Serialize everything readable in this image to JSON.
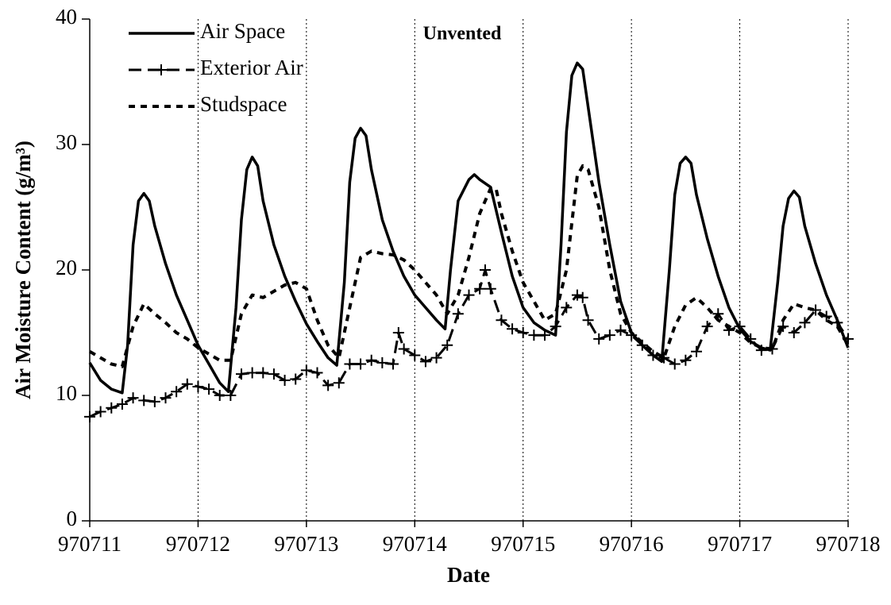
{
  "chart_data": {
    "type": "line",
    "title": "Unvented",
    "x_label": "Date",
    "y_label": "Air Moisture Content (g/m³)",
    "xlim": [
      970711,
      970718
    ],
    "xticks": [
      970711,
      970712,
      970713,
      970714,
      970715,
      970716,
      970717,
      970718
    ],
    "ylim": [
      0,
      40
    ],
    "yticks": [
      0,
      10,
      20,
      30,
      40
    ],
    "grid": "x",
    "legend": "upper left",
    "series": [
      {
        "name": "Air Space",
        "color": "#000000",
        "line_style": "solid",
        "x": [
          970711.0,
          970711.1,
          970711.2,
          970711.3,
          970711.35,
          970711.4,
          970711.45,
          970711.5,
          970711.55,
          970711.6,
          970711.7,
          970711.8,
          970711.9,
          970712.0,
          970712.1,
          970712.2,
          970712.28,
          970712.35,
          970712.4,
          970712.45,
          970712.5,
          970712.55,
          970712.6,
          970712.7,
          970712.8,
          970712.9,
          970713.0,
          970713.1,
          970713.2,
          970713.28,
          970713.35,
          970713.4,
          970713.45,
          970713.5,
          970713.55,
          970713.6,
          970713.7,
          970713.8,
          970713.9,
          970714.0,
          970714.1,
          970714.2,
          970714.28,
          970714.33,
          970714.4,
          970714.5,
          970714.55,
          970714.6,
          970714.7,
          970714.8,
          970714.9,
          970715.0,
          970715.1,
          970715.2,
          970715.3,
          970715.35,
          970715.4,
          970715.45,
          970715.5,
          970715.55,
          970715.6,
          970715.7,
          970715.8,
          970715.9,
          970716.0,
          970716.1,
          970716.2,
          970716.28,
          970716.35,
          970716.4,
          970716.45,
          970716.5,
          970716.55,
          970716.6,
          970716.7,
          970716.8,
          970716.9,
          970717.0,
          970717.1,
          970717.2,
          970717.28,
          970717.35,
          970717.4,
          970717.45,
          970717.5,
          970717.55,
          970717.6,
          970717.7,
          970717.8,
          970717.9,
          970718.0
        ],
        "values": [
          12.6,
          11.2,
          10.5,
          10.2,
          14,
          22,
          25.5,
          26.1,
          25.5,
          23.5,
          20.5,
          18,
          16,
          14,
          12.5,
          11,
          10.3,
          17,
          24,
          28,
          29,
          28.3,
          25.5,
          22,
          19.5,
          17.5,
          15.7,
          14.3,
          13,
          12.4,
          19,
          27,
          30.5,
          31.3,
          30.7,
          28,
          24,
          21.5,
          19.5,
          18,
          17,
          16,
          15.3,
          20,
          25.5,
          27.2,
          27.6,
          27.2,
          26.6,
          23,
          19.5,
          17,
          15.8,
          15.2,
          14.8,
          22,
          31,
          35.5,
          36.5,
          36,
          33,
          27,
          22,
          17.5,
          15,
          14,
          13.2,
          12.7,
          20,
          26,
          28.5,
          29,
          28.5,
          26,
          22.5,
          19.5,
          17,
          15.3,
          14.3,
          13.8,
          13.6,
          19,
          23.5,
          25.7,
          26.3,
          25.8,
          23.5,
          20.5,
          18,
          16,
          13.8
        ]
      },
      {
        "name": "Exterior Air",
        "color": "#000000",
        "line_style": "dashed",
        "marker": "+",
        "x": [
          970711.0,
          970711.1,
          970711.2,
          970711.3,
          970711.4,
          970711.5,
          970711.6,
          970711.7,
          970711.8,
          970711.9,
          970712.0,
          970712.1,
          970712.2,
          970712.3,
          970712.4,
          970712.5,
          970712.6,
          970712.7,
          970712.8,
          970712.9,
          970713.0,
          970713.1,
          970713.2,
          970713.3,
          970713.4,
          970713.5,
          970713.6,
          970713.7,
          970713.8,
          970713.85,
          970713.9,
          970714.0,
          970714.1,
          970714.2,
          970714.3,
          970714.4,
          970714.5,
          970714.6,
          970714.65,
          970714.7,
          970714.8,
          970714.9,
          970715.0,
          970715.1,
          970715.2,
          970715.3,
          970715.4,
          970715.5,
          970715.55,
          970715.6,
          970715.7,
          970715.8,
          970715.9,
          970716.0,
          970716.1,
          970716.2,
          970716.3,
          970716.4,
          970716.5,
          970716.6,
          970716.7,
          970716.8,
          970716.9,
          970717.0,
          970717.1,
          970717.2,
          970717.3,
          970717.4,
          970717.5,
          970717.6,
          970717.7,
          970717.8,
          970717.9,
          970718.0
        ],
        "values": [
          8.3,
          8.7,
          9,
          9.3,
          9.8,
          9.6,
          9.5,
          9.8,
          10.3,
          10.9,
          10.7,
          10.5,
          10,
          10,
          11.7,
          11.8,
          11.8,
          11.7,
          11.2,
          11.3,
          12,
          11.8,
          10.8,
          11,
          12.5,
          12.5,
          12.8,
          12.6,
          12.5,
          15,
          13.7,
          13.2,
          12.7,
          13,
          14,
          16.5,
          18,
          18.5,
          20,
          18.5,
          16,
          15.3,
          15,
          14.8,
          14.8,
          15.5,
          17,
          18,
          17.8,
          16,
          14.5,
          14.8,
          15.2,
          14.8,
          14,
          13.2,
          13,
          12.5,
          12.8,
          13.5,
          15.5,
          16.5,
          15.2,
          15.5,
          14.5,
          13.6,
          13.7,
          15.5,
          15,
          15.8,
          16.8,
          16.3,
          15.8,
          14.5
        ]
      },
      {
        "name": "Studspace",
        "color": "#000000",
        "line_style": "dotted",
        "x": [
          970711.0,
          970711.1,
          970711.2,
          970711.3,
          970711.4,
          970711.5,
          970711.6,
          970711.7,
          970711.8,
          970711.9,
          970712.0,
          970712.1,
          970712.2,
          970712.3,
          970712.4,
          970712.5,
          970712.6,
          970712.7,
          970712.8,
          970712.9,
          970713.0,
          970713.1,
          970713.2,
          970713.3,
          970713.4,
          970713.5,
          970713.6,
          970713.7,
          970713.8,
          970713.9,
          970714.0,
          970714.1,
          970714.2,
          970714.3,
          970714.4,
          970714.5,
          970714.6,
          970714.7,
          970714.75,
          970714.8,
          970714.9,
          970715.0,
          970715.1,
          970715.2,
          970715.3,
          970715.4,
          970715.5,
          970715.55,
          970715.6,
          970715.7,
          970715.8,
          970715.9,
          970716.0,
          970716.1,
          970716.2,
          970716.3,
          970716.4,
          970716.5,
          970716.6,
          970716.7,
          970716.8,
          970716.9,
          970717.0,
          970717.1,
          970717.2,
          970717.3,
          970717.4,
          970717.5,
          970717.6,
          970717.7,
          970717.8,
          970717.9,
          970718.0
        ],
        "values": [
          13.5,
          13,
          12.5,
          12.3,
          15.5,
          17.3,
          16.5,
          15.8,
          15,
          14.5,
          13.8,
          13.3,
          12.8,
          12.8,
          16.5,
          18,
          17.8,
          18.3,
          18.8,
          19,
          18.5,
          16,
          14,
          13,
          17,
          21,
          21.5,
          21.3,
          21.2,
          20.8,
          20,
          19,
          18,
          16.5,
          18,
          21,
          24.5,
          26.5,
          26.5,
          24.5,
          21.5,
          19,
          17.5,
          16,
          16.5,
          20,
          27.5,
          28.3,
          28,
          25,
          20,
          16.5,
          15,
          14.2,
          13.5,
          13,
          15.5,
          17.2,
          17.8,
          17,
          16,
          15.5,
          15,
          14.2,
          13.8,
          13.7,
          16,
          17.3,
          17,
          16.8,
          16,
          15.5,
          14
        ]
      }
    ]
  }
}
